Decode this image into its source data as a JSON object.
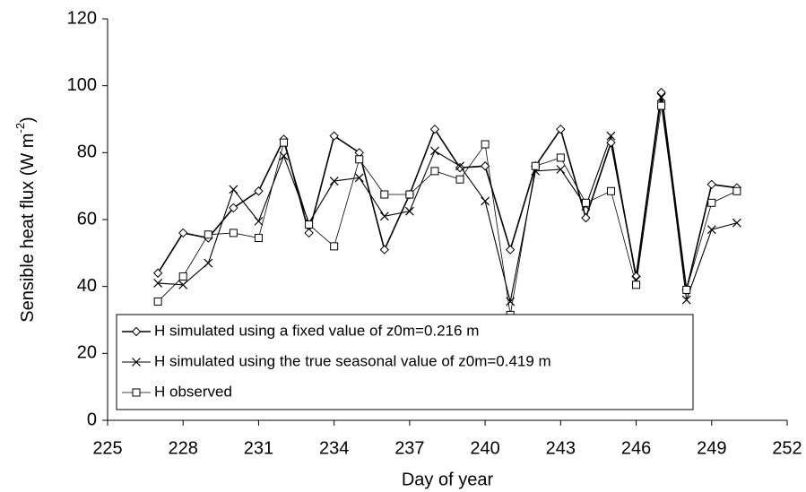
{
  "chart_data": {
    "type": "line",
    "x_label": "Day of year",
    "y_label": [
      "Sensible heat flux (W m",
      "-2",
      ")"
    ],
    "x": [
      227,
      228,
      229,
      230,
      231,
      232,
      233,
      234,
      235,
      236,
      237,
      238,
      239,
      240,
      241,
      242,
      243,
      244,
      245,
      246,
      247,
      248,
      249,
      250
    ],
    "series": [
      {
        "name": "H simulated using a fixed value of z0m=0.216 m",
        "color": "#000000",
        "marker": "diamond",
        "line_width": 1.6,
        "values": [
          44,
          56,
          54.5,
          63.5,
          68.5,
          84,
          56,
          85,
          80,
          51,
          67.5,
          87,
          75.5,
          76,
          51,
          76,
          87,
          60.5,
          83,
          43,
          98,
          39,
          70.5,
          69.5
        ]
      },
      {
        "name": "H simulated using the true seasonal value of z0m=0.419 m",
        "color": "#000000",
        "marker": "x",
        "line_width": 1.1,
        "values": [
          41,
          40.5,
          47,
          69,
          59.5,
          79,
          59,
          71.5,
          72.5,
          61,
          62.5,
          80.5,
          76,
          65.5,
          35.5,
          74.5,
          75,
          64,
          85,
          42,
          96.5,
          36,
          57,
          59
        ]
      },
      {
        "name": "H observed",
        "color": "#000000",
        "marker": "square",
        "line_width": 0.8,
        "values": [
          35.5,
          43,
          55.5,
          56,
          54.5,
          83,
          58.5,
          52,
          78,
          67.5,
          67.5,
          74.5,
          72,
          82.5,
          31.5,
          76,
          78.5,
          65,
          68.5,
          40.5,
          94,
          39,
          65,
          68.5
        ]
      }
    ],
    "xlim": [
      225,
      252
    ],
    "xticks": [
      225,
      228,
      231,
      234,
      237,
      240,
      243,
      246,
      249,
      252
    ],
    "ylim": [
      0,
      120
    ],
    "yticks": [
      0,
      20,
      40,
      60,
      80,
      100,
      120
    ],
    "grid": false,
    "legend": "lower-left"
  }
}
